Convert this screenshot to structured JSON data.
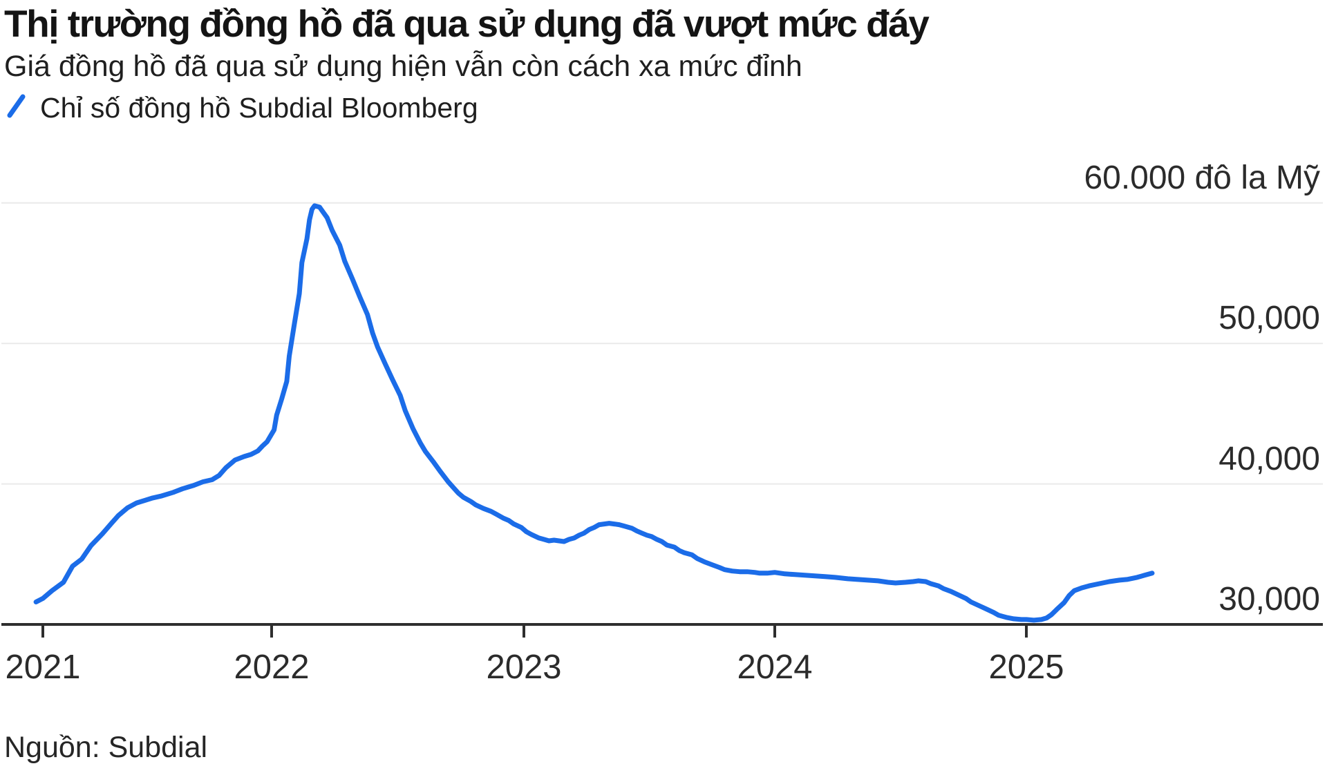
{
  "header": {
    "title": "Thị trường đồng hồ đã qua sử dụng đã vượt mức đáy",
    "subtitle": "Giá đồng hồ đã qua sử dụng hiện vẫn còn cách xa mức đỉnh"
  },
  "footer": {
    "source": "Nguồn: Subdial"
  },
  "colors": {
    "line": "#1b6ce8",
    "axis": "#2e2e2e",
    "grid": "#eaeaea",
    "title_text": "#141414",
    "body_text": "#1f1f1f",
    "tick_text": "#2b2b2b",
    "background": "#ffffff"
  },
  "chart_data": {
    "type": "line",
    "title": "Thị trường đồng hồ đã qua sử dụng đã vượt mức đáy",
    "subtitle": "Giá đồng hồ đã qua sử dụng hiện vẫn còn cách xa mức đỉnh",
    "source": "Nguồn: Subdial",
    "legend": [
      "Chỉ số đồng hồ Subdial Bloomberg"
    ],
    "legend_position": "top-left",
    "grid": true,
    "xlabel": "",
    "ylabel": "đô la Mỹ (USD)",
    "ylim": [
      30000,
      60000
    ],
    "xlim": [
      2020.97,
      2025.55
    ],
    "y_axis": {
      "side": "right",
      "unit_label": "60.000 đô la Mỹ",
      "ticks": [
        {
          "value": 60000,
          "label": "60.000 đô la Mỹ"
        },
        {
          "value": 50000,
          "label": "50,000"
        },
        {
          "value": 40000,
          "label": "40,000"
        },
        {
          "value": 30000,
          "label": "30,000"
        }
      ]
    },
    "x_axis": {
      "ticks": [
        2021,
        2022,
        2023,
        2024,
        2025
      ],
      "labels": [
        "2021",
        "2022",
        "2023",
        "2024",
        "2025"
      ]
    },
    "series": [
      {
        "name": "Chỉ số đồng hồ Subdial Bloomberg",
        "color": "#1b6ce8",
        "points": [
          [
            2020.97,
            31600
          ],
          [
            2021.0,
            31850
          ],
          [
            2021.04,
            32400
          ],
          [
            2021.09,
            33000
          ],
          [
            2021.13,
            34150
          ],
          [
            2021.17,
            34650
          ],
          [
            2021.21,
            35600
          ],
          [
            2021.26,
            36450
          ],
          [
            2021.3,
            37200
          ],
          [
            2021.33,
            37750
          ],
          [
            2021.37,
            38300
          ],
          [
            2021.41,
            38650
          ],
          [
            2021.45,
            38850
          ],
          [
            2021.48,
            39000
          ],
          [
            2021.52,
            39150
          ],
          [
            2021.57,
            39400
          ],
          [
            2021.61,
            39650
          ],
          [
            2021.66,
            39900
          ],
          [
            2021.7,
            40150
          ],
          [
            2021.74,
            40300
          ],
          [
            2021.77,
            40600
          ],
          [
            2021.8,
            41150
          ],
          [
            2021.84,
            41700
          ],
          [
            2021.88,
            41950
          ],
          [
            2021.91,
            42100
          ],
          [
            2021.94,
            42350
          ],
          [
            2021.96,
            42700
          ],
          [
            2021.98,
            43000
          ],
          [
            2022.01,
            43850
          ],
          [
            2022.02,
            44900
          ],
          [
            2022.04,
            46050
          ],
          [
            2022.06,
            47300
          ],
          [
            2022.07,
            49100
          ],
          [
            2022.09,
            51350
          ],
          [
            2022.11,
            53550
          ],
          [
            2022.12,
            55750
          ],
          [
            2022.14,
            57450
          ],
          [
            2022.15,
            58800
          ],
          [
            2022.16,
            59550
          ],
          [
            2022.17,
            59800
          ],
          [
            2022.19,
            59700
          ],
          [
            2022.2,
            59450
          ],
          [
            2022.22,
            58950
          ],
          [
            2022.24,
            58050
          ],
          [
            2022.27,
            57000
          ],
          [
            2022.29,
            55850
          ],
          [
            2022.32,
            54600
          ],
          [
            2022.35,
            53300
          ],
          [
            2022.38,
            52050
          ],
          [
            2022.4,
            50750
          ],
          [
            2022.42,
            49750
          ],
          [
            2022.45,
            48550
          ],
          [
            2022.48,
            47400
          ],
          [
            2022.51,
            46300
          ],
          [
            2022.53,
            45200
          ],
          [
            2022.56,
            43950
          ],
          [
            2022.59,
            42900
          ],
          [
            2022.61,
            42300
          ],
          [
            2022.64,
            41600
          ],
          [
            2022.67,
            40850
          ],
          [
            2022.7,
            40150
          ],
          [
            2022.72,
            39750
          ],
          [
            2022.74,
            39350
          ],
          [
            2022.76,
            39050
          ],
          [
            2022.79,
            38750
          ],
          [
            2022.81,
            38500
          ],
          [
            2022.84,
            38250
          ],
          [
            2022.87,
            38050
          ],
          [
            2022.89,
            37850
          ],
          [
            2022.92,
            37550
          ],
          [
            2022.94,
            37400
          ],
          [
            2022.96,
            37150
          ],
          [
            2022.99,
            36900
          ],
          [
            2023.01,
            36600
          ],
          [
            2023.03,
            36400
          ],
          [
            2023.06,
            36150
          ],
          [
            2023.08,
            36050
          ],
          [
            2023.1,
            35950
          ],
          [
            2023.12,
            36000
          ],
          [
            2023.14,
            35950
          ],
          [
            2023.16,
            35900
          ],
          [
            2023.18,
            36050
          ],
          [
            2023.2,
            36150
          ],
          [
            2023.22,
            36350
          ],
          [
            2023.24,
            36500
          ],
          [
            2023.26,
            36750
          ],
          [
            2023.28,
            36900
          ],
          [
            2023.3,
            37100
          ],
          [
            2023.32,
            37150
          ],
          [
            2023.34,
            37200
          ],
          [
            2023.36,
            37150
          ],
          [
            2023.38,
            37100
          ],
          [
            2023.4,
            37000
          ],
          [
            2023.43,
            36850
          ],
          [
            2023.45,
            36650
          ],
          [
            2023.47,
            36500
          ],
          [
            2023.49,
            36350
          ],
          [
            2023.51,
            36250
          ],
          [
            2023.53,
            36050
          ],
          [
            2023.55,
            35900
          ],
          [
            2023.57,
            35650
          ],
          [
            2023.6,
            35500
          ],
          [
            2023.62,
            35250
          ],
          [
            2023.64,
            35100
          ],
          [
            2023.67,
            34950
          ],
          [
            2023.69,
            34700
          ],
          [
            2023.72,
            34450
          ],
          [
            2023.75,
            34250
          ],
          [
            2023.78,
            34050
          ],
          [
            2023.8,
            33900
          ],
          [
            2023.83,
            33800
          ],
          [
            2023.86,
            33750
          ],
          [
            2023.89,
            33750
          ],
          [
            2023.92,
            33700
          ],
          [
            2023.94,
            33650
          ],
          [
            2023.97,
            33650
          ],
          [
            2024.0,
            33700
          ],
          [
            2024.04,
            33600
          ],
          [
            2024.08,
            33550
          ],
          [
            2024.12,
            33500
          ],
          [
            2024.16,
            33450
          ],
          [
            2024.2,
            33400
          ],
          [
            2024.24,
            33350
          ],
          [
            2024.29,
            33250
          ],
          [
            2024.33,
            33200
          ],
          [
            2024.37,
            33150
          ],
          [
            2024.41,
            33100
          ],
          [
            2024.45,
            33000
          ],
          [
            2024.48,
            32950
          ],
          [
            2024.52,
            33000
          ],
          [
            2024.55,
            33050
          ],
          [
            2024.57,
            33100
          ],
          [
            2024.6,
            33050
          ],
          [
            2024.62,
            32900
          ],
          [
            2024.65,
            32750
          ],
          [
            2024.67,
            32550
          ],
          [
            2024.7,
            32350
          ],
          [
            2024.73,
            32100
          ],
          [
            2024.76,
            31850
          ],
          [
            2024.78,
            31600
          ],
          [
            2024.81,
            31350
          ],
          [
            2024.84,
            31100
          ],
          [
            2024.87,
            30850
          ],
          [
            2024.89,
            30650
          ],
          [
            2024.92,
            30500
          ],
          [
            2024.95,
            30400
          ],
          [
            2024.98,
            30350
          ],
          [
            2025.0,
            30350
          ],
          [
            2025.03,
            30300
          ],
          [
            2025.06,
            30350
          ],
          [
            2025.08,
            30450
          ],
          [
            2025.1,
            30700
          ],
          [
            2025.12,
            31050
          ],
          [
            2025.15,
            31550
          ],
          [
            2025.17,
            32050
          ],
          [
            2025.19,
            32400
          ],
          [
            2025.22,
            32600
          ],
          [
            2025.25,
            32750
          ],
          [
            2025.29,
            32900
          ],
          [
            2025.33,
            33050
          ],
          [
            2025.37,
            33150
          ],
          [
            2025.4,
            33200
          ],
          [
            2025.44,
            33350
          ],
          [
            2025.47,
            33500
          ],
          [
            2025.5,
            33650
          ]
        ]
      }
    ]
  }
}
